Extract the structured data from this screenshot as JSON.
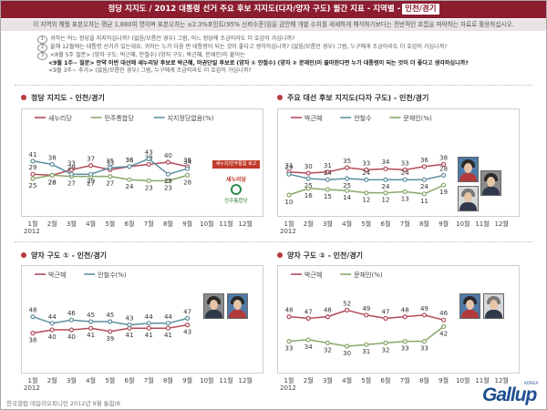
{
  "header": {
    "title": "정당 지지도 / 2012 대통령 선거 주요 후보 지지도(다자/양자 구도) 월간 지표 - 지역별 -",
    "region": "인천/경기"
  },
  "note": "이 지역의 해월 표본오차는 평균 1,880여 명이며 표본오차는 ±2.3%포인트(95% 신뢰수준)임을 감안해 개별 수치를 세세하게 해석하기보다는 전반적인 흐름을 파악하는 자료로 활용하십시오.",
  "questions": [
    {
      "num": "1",
      "text": "귀하는 어느 정당을 지지하십니까? (없음/모름인 경우) 그럼, 어느 정당에 조금이라도 더 호감이 가십니까?",
      "style": "normal"
    },
    {
      "num": "2",
      "text": "올해 12월에는 대통령 선거가 있는데요, 귀하는 누가 다음 번 대통령이 되는 것이 좋다고 생각하십니까? (없음/모름인 경우) 그럼, 누구에게 조금이라도 더 호감이 가십니까?",
      "style": "normal"
    },
    {
      "num": "3",
      "text": "<8월 5주 질문> (양자 구도: 박근혜, 안철수) (양자 구도: 박근혜, 문재인)이 붙어는",
      "style": "normal"
    },
    {
      "num": "",
      "text": "<9월 1주~ 질문> 만약 이번 대선에 새누리당 후보로 박근혜, 야권단일 후보로 (양자 ① 안철수) (양자 ② 문재인)이 출마한다면 누가 대통령이 되는 것이 더 좋다고 생각하십니까?",
      "style": "bold"
    },
    {
      "num": "",
      "text": "<9월 3주~ 추가> (없음/모름인 경우) 그럼, 누구에게 조금이라도 더 호감이 가십니까?",
      "style": "normal"
    }
  ],
  "months": [
    "1월",
    "2월",
    "3월",
    "4월",
    "5월",
    "6월",
    "7월",
    "8월",
    "9월",
    "10월",
    "11월",
    "12월"
  ],
  "year": "2012",
  "party_logos": {
    "top": "새누리/민주통합 로고",
    "saenuri": "새누리당",
    "minju": "민주통합당"
  },
  "footer": "한국갤럽 데일리오피니언 2012년 9월 통합/8",
  "brand": {
    "name": "Gallup",
    "sub": "KOREA"
  },
  "chart_data": [
    {
      "type": "line",
      "title": "정당 지지도 - 인천/경기",
      "categories": [
        "1월",
        "2월",
        "3월",
        "4월",
        "5월",
        "6월",
        "7월",
        "8월",
        "9월",
        "10월",
        "11월",
        "12월"
      ],
      "ylim": [
        0,
        60
      ],
      "series": [
        {
          "name": "새누리당",
          "color": "#b24a5a",
          "values": [
            29,
            28,
            33,
            37,
            33,
            36,
            38,
            40,
            36,
            null,
            null,
            null
          ]
        },
        {
          "name": "민주통합당",
          "color": "#8aa76b",
          "values": [
            25,
            28,
            27,
            27,
            27,
            24,
            23,
            23,
            28,
            null,
            null,
            null
          ]
        },
        {
          "name": "지지정당없음(%)",
          "color": "#5f8fa0",
          "values": [
            41,
            38,
            29,
            29,
            35,
            36,
            43,
            29,
            34,
            null,
            null,
            null
          ]
        }
      ]
    },
    {
      "type": "line",
      "title": "주요 대선 후보 지지도(다자 구도) - 인천/경기",
      "categories": [
        "1월",
        "2월",
        "3월",
        "4월",
        "5월",
        "6월",
        "7월",
        "8월",
        "9월",
        "10월",
        "11월",
        "12월"
      ],
      "ylim": [
        0,
        60
      ],
      "series": [
        {
          "name": "박근혜",
          "color": "#b24a5a",
          "values": [
            31,
            30,
            31,
            35,
            33,
            34,
            33,
            36,
            38,
            null,
            null,
            null
          ]
        },
        {
          "name": "안철수",
          "color": "#5f8fa0",
          "values": [
            29,
            25,
            24,
            25,
            24,
            24,
            24,
            24,
            28,
            null,
            null,
            null
          ]
        },
        {
          "name": "문재인(%)",
          "color": "#8aa76b",
          "values": [
            10,
            16,
            15,
            14,
            12,
            12,
            13,
            11,
            19,
            null,
            null,
            null
          ]
        }
      ]
    },
    {
      "type": "line",
      "title": "양자 구도 ① - 인천/경기",
      "categories": [
        "1월",
        "2월",
        "3월",
        "4월",
        "5월",
        "6월",
        "7월",
        "8월",
        "9월",
        "10월",
        "11월",
        "12월"
      ],
      "ylim": [
        20,
        60
      ],
      "series": [
        {
          "name": "박근혜",
          "color": "#b24a5a",
          "values": [
            38,
            40,
            40,
            41,
            39,
            41,
            41,
            41,
            43,
            null,
            null,
            null
          ]
        },
        {
          "name": "안철수(%)",
          "color": "#5f8fa0",
          "values": [
            48,
            44,
            46,
            45,
            45,
            43,
            44,
            44,
            47,
            null,
            null,
            null
          ]
        }
      ]
    },
    {
      "type": "line",
      "title": "양자 구도 ② - 인천/경기",
      "categories": [
        "1월",
        "2월",
        "3월",
        "4월",
        "5월",
        "6월",
        "7월",
        "8월",
        "9월",
        "10월",
        "11월",
        "12월"
      ],
      "ylim": [
        20,
        60
      ],
      "series": [
        {
          "name": "박근혜",
          "color": "#b24a5a",
          "values": [
            48,
            47,
            48,
            52,
            49,
            47,
            48,
            49,
            46,
            null,
            null,
            null
          ]
        },
        {
          "name": "문재인(%)",
          "color": "#8aa76b",
          "values": [
            33,
            34,
            32,
            30,
            31,
            32,
            33,
            33,
            42,
            null,
            null,
            null
          ]
        }
      ]
    }
  ]
}
